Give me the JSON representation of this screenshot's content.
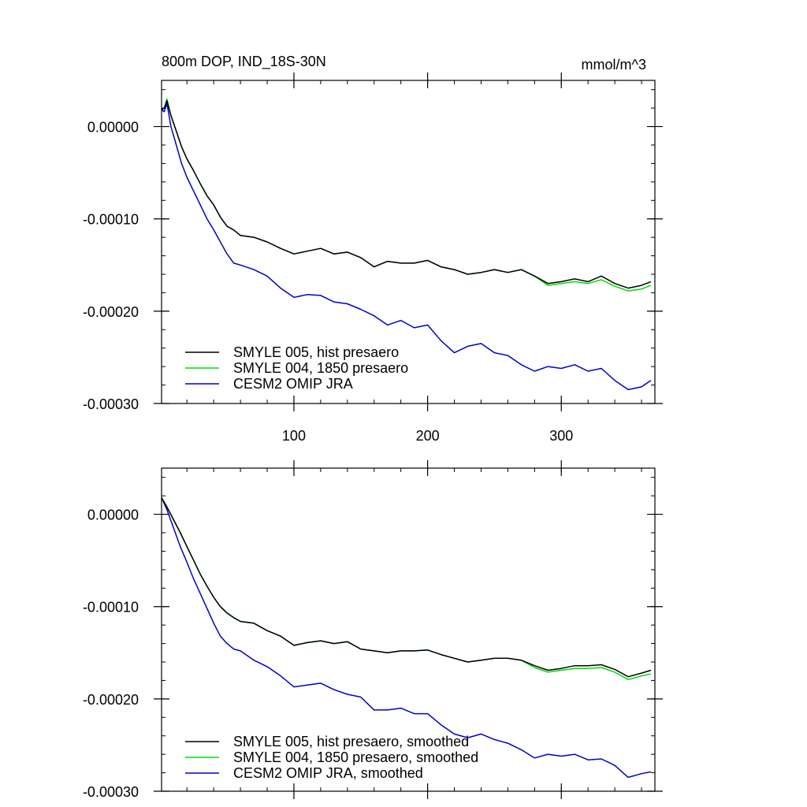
{
  "chart_data": [
    {
      "type": "line",
      "title": "800m DOP, IND_18S-30N",
      "units": "mmol/m^3",
      "xlim": [
        1,
        370
      ],
      "ylim": [
        -0.0003,
        5e-05
      ],
      "x_ticks": [
        100,
        200,
        300
      ],
      "y_ticks": [
        0.0,
        -0.0001,
        -0.0002,
        -0.0003
      ],
      "y_tick_labels": [
        "0.00000",
        "-0.00010",
        "-0.00020",
        "-0.00030"
      ],
      "x_tick_labels": [
        "100",
        "200",
        "300"
      ],
      "series": [
        {
          "name": "SMYLE 005, hist presaero",
          "color": "#000000",
          "x": [
            1,
            3,
            5,
            8,
            12,
            16,
            20,
            25,
            30,
            35,
            40,
            45,
            50,
            55,
            60,
            70,
            80,
            90,
            100,
            110,
            120,
            130,
            140,
            150,
            160,
            170,
            180,
            190,
            200,
            210,
            220,
            230,
            240,
            250,
            260,
            270,
            280,
            290,
            300,
            310,
            320,
            330,
            340,
            350,
            360,
            367
          ],
          "y": [
            1.8e-05,
            2e-05,
            2.8e-05,
            1.2e-05,
            -5e-06,
            -2.2e-05,
            -3.5e-05,
            -4.8e-05,
            -6.2e-05,
            -7.5e-05,
            -8.5e-05,
            -9.8e-05,
            -0.000108,
            -0.000112,
            -0.000118,
            -0.00012,
            -0.000125,
            -0.000132,
            -0.000138,
            -0.000135,
            -0.000132,
            -0.000138,
            -0.000136,
            -0.000142,
            -0.000152,
            -0.000146,
            -0.000148,
            -0.000148,
            -0.000145,
            -0.000152,
            -0.000155,
            -0.00016,
            -0.000158,
            -0.000155,
            -0.000158,
            -0.000155,
            -0.000162,
            -0.00017,
            -0.000168,
            -0.000165,
            -0.000168,
            -0.000162,
            -0.00017,
            -0.000175,
            -0.000172,
            -0.000168
          ]
        },
        {
          "name": "SMYLE 004, 1850 presaero",
          "color": "#00dd00",
          "x": [
            1,
            3,
            5,
            8,
            12,
            16,
            20,
            25,
            30,
            35,
            40,
            45,
            50,
            55,
            60,
            70,
            80,
            90,
            100,
            110,
            120,
            130,
            140,
            150,
            160,
            170,
            180,
            190,
            200,
            210,
            220,
            230,
            240,
            250,
            260,
            270,
            280,
            290,
            300,
            310,
            320,
            330,
            340,
            350,
            360,
            367
          ],
          "y": [
            1.8e-05,
            2e-05,
            3e-05,
            1.2e-05,
            -5e-06,
            -2.2e-05,
            -3.5e-05,
            -4.8e-05,
            -6.2e-05,
            -7.5e-05,
            -8.5e-05,
            -9.8e-05,
            -0.000108,
            -0.000112,
            -0.000118,
            -0.00012,
            -0.000125,
            -0.000132,
            -0.000138,
            -0.000135,
            -0.000132,
            -0.000138,
            -0.000136,
            -0.000142,
            -0.000152,
            -0.000146,
            -0.000148,
            -0.000148,
            -0.000145,
            -0.000152,
            -0.000155,
            -0.00016,
            -0.000158,
            -0.000155,
            -0.000158,
            -0.000155,
            -0.000162,
            -0.000172,
            -0.00017,
            -0.000168,
            -0.00017,
            -0.000166,
            -0.000173,
            -0.000178,
            -0.000176,
            -0.000172
          ]
        },
        {
          "name": "CESM2 OMIP JRA",
          "color": "#0000cc",
          "x": [
            1,
            3,
            5,
            8,
            12,
            16,
            20,
            25,
            30,
            35,
            40,
            45,
            50,
            55,
            60,
            70,
            80,
            90,
            100,
            110,
            120,
            130,
            140,
            150,
            160,
            170,
            180,
            190,
            200,
            210,
            220,
            230,
            240,
            250,
            260,
            270,
            280,
            290,
            300,
            310,
            320,
            330,
            340,
            350,
            360,
            367
          ],
          "y": [
            1.8e-05,
            1.6e-05,
            2.5e-05,
            0.0,
            -2e-05,
            -4e-05,
            -5.5e-05,
            -7e-05,
            -8.5e-05,
            -0.0001,
            -0.000112,
            -0.000125,
            -0.000138,
            -0.000148,
            -0.00015,
            -0.000155,
            -0.000162,
            -0.000175,
            -0.000185,
            -0.000182,
            -0.000183,
            -0.00019,
            -0.000192,
            -0.000198,
            -0.000205,
            -0.000215,
            -0.00021,
            -0.000218,
            -0.000215,
            -0.000232,
            -0.000245,
            -0.000238,
            -0.000235,
            -0.000245,
            -0.000248,
            -0.000258,
            -0.000265,
            -0.00026,
            -0.000262,
            -0.000258,
            -0.000265,
            -0.000262,
            -0.000275,
            -0.000285,
            -0.000282,
            -0.000275
          ]
        }
      ]
    },
    {
      "type": "line",
      "title": "",
      "xlim": [
        1,
        370
      ],
      "ylim": [
        -0.0003,
        5e-05
      ],
      "x_ticks": [
        100,
        200,
        300
      ],
      "y_ticks": [
        0.0,
        -0.0001,
        -0.0002,
        -0.0003
      ],
      "y_tick_labels": [
        "0.00000",
        "-0.00010",
        "-0.00020",
        "-0.00030"
      ],
      "series": [
        {
          "name": "SMYLE 005, hist presaero, smoothed",
          "color": "#000000",
          "x": [
            1,
            5,
            10,
            15,
            20,
            25,
            30,
            35,
            40,
            45,
            50,
            55,
            60,
            70,
            80,
            90,
            100,
            110,
            120,
            130,
            140,
            150,
            160,
            170,
            180,
            190,
            200,
            210,
            220,
            230,
            240,
            250,
            260,
            270,
            280,
            290,
            300,
            310,
            320,
            330,
            340,
            350,
            360,
            367
          ],
          "y": [
            1.8e-05,
            8e-06,
            -6e-06,
            -2e-05,
            -3.5e-05,
            -5e-05,
            -6.5e-05,
            -7.8e-05,
            -9e-05,
            -0.0001,
            -0.000107,
            -0.000112,
            -0.000116,
            -0.000118,
            -0.000126,
            -0.000132,
            -0.000142,
            -0.000139,
            -0.000137,
            -0.00014,
            -0.000138,
            -0.000146,
            -0.000148,
            -0.00015,
            -0.000148,
            -0.000148,
            -0.000147,
            -0.000152,
            -0.000156,
            -0.00016,
            -0.000158,
            -0.000156,
            -0.000156,
            -0.000158,
            -0.000164,
            -0.000169,
            -0.000167,
            -0.000164,
            -0.000164,
            -0.000163,
            -0.000168,
            -0.000176,
            -0.000172,
            -0.000169
          ]
        },
        {
          "name": "SMYLE 004, 1850 presaero, smoothed",
          "color": "#00dd00",
          "x": [
            1,
            5,
            10,
            15,
            20,
            25,
            30,
            35,
            40,
            45,
            50,
            55,
            60,
            70,
            80,
            90,
            100,
            110,
            120,
            130,
            140,
            150,
            160,
            170,
            180,
            190,
            200,
            210,
            220,
            230,
            240,
            250,
            260,
            270,
            280,
            290,
            300,
            310,
            320,
            330,
            340,
            350,
            360,
            367
          ],
          "y": [
            1.8e-05,
            8e-06,
            -6e-06,
            -2e-05,
            -3.5e-05,
            -5e-05,
            -6.5e-05,
            -7.8e-05,
            -9e-05,
            -0.0001,
            -0.000107,
            -0.000112,
            -0.000116,
            -0.000118,
            -0.000126,
            -0.000132,
            -0.000142,
            -0.000139,
            -0.000137,
            -0.00014,
            -0.000138,
            -0.000146,
            -0.000148,
            -0.00015,
            -0.000148,
            -0.000148,
            -0.000147,
            -0.000152,
            -0.000156,
            -0.00016,
            -0.000158,
            -0.000156,
            -0.000156,
            -0.000158,
            -0.000166,
            -0.000171,
            -0.000169,
            -0.000167,
            -0.000167,
            -0.000166,
            -0.000171,
            -0.000179,
            -0.000175,
            -0.000173
          ]
        },
        {
          "name": "CESM2 OMIP JRA, smoothed",
          "color": "#0000cc",
          "x": [
            1,
            5,
            10,
            15,
            20,
            25,
            30,
            35,
            40,
            45,
            50,
            55,
            60,
            70,
            80,
            90,
            100,
            110,
            120,
            130,
            140,
            150,
            160,
            170,
            180,
            190,
            200,
            210,
            220,
            230,
            240,
            250,
            260,
            270,
            280,
            290,
            300,
            310,
            320,
            330,
            340,
            350,
            360,
            367
          ],
          "y": [
            1.8e-05,
            5e-06,
            -1.5e-05,
            -3.5e-05,
            -5.2e-05,
            -7e-05,
            -8.6e-05,
            -0.000102,
            -0.000118,
            -0.000132,
            -0.00014,
            -0.000146,
            -0.000148,
            -0.000158,
            -0.000165,
            -0.000175,
            -0.000187,
            -0.000185,
            -0.000183,
            -0.00019,
            -0.000195,
            -0.000198,
            -0.000212,
            -0.000212,
            -0.00021,
            -0.000216,
            -0.000216,
            -0.000228,
            -0.000238,
            -0.000242,
            -0.000238,
            -0.000244,
            -0.000248,
            -0.000255,
            -0.000264,
            -0.00026,
            -0.000262,
            -0.00026,
            -0.000266,
            -0.000265,
            -0.000272,
            -0.000285,
            -0.000281,
            -0.000279
          ]
        }
      ]
    }
  ]
}
